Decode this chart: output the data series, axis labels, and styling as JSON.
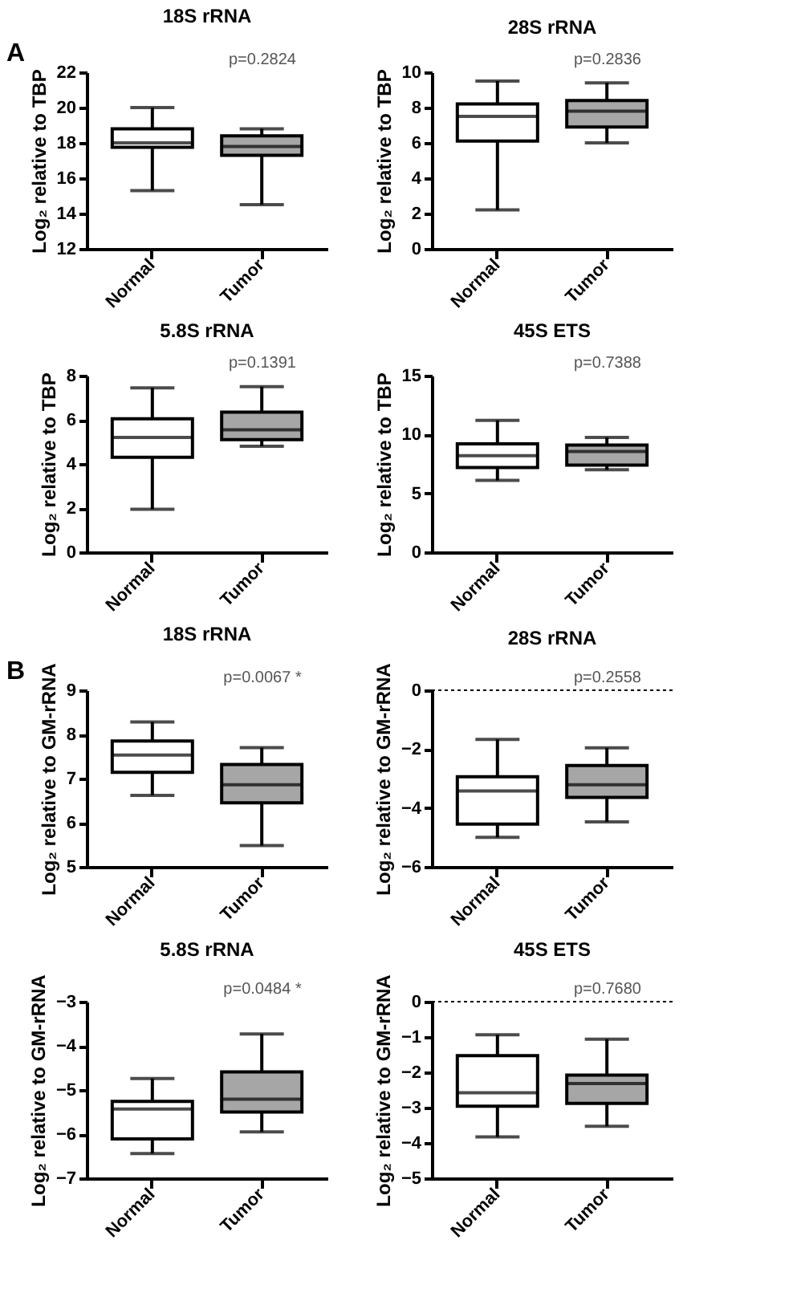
{
  "chart_data": [
    {
      "type": "box",
      "title": "18S rRNA",
      "ylabel": "Log₂ relative to TBP",
      "categories": [
        "Normal",
        "Tumor"
      ],
      "colors": [
        "#ffffff",
        "#a6a6a6"
      ],
      "ylim": [
        12,
        22
      ],
      "yticks": [
        12,
        14,
        16,
        18,
        20,
        22
      ],
      "annotations": [
        "A",
        "p=0.2824"
      ],
      "boxes": [
        {
          "low": 15.3,
          "q1": 17.75,
          "median": 18.0,
          "q3": 18.8,
          "high": 20.0
        },
        {
          "low": 14.5,
          "q1": 17.3,
          "median": 17.8,
          "q3": 18.4,
          "high": 18.8
        }
      ]
    },
    {
      "type": "box",
      "title": "28S rRNA",
      "ylabel": "Log₂ relative to TBP",
      "categories": [
        "Normal",
        "Tumor"
      ],
      "colors": [
        "#ffffff",
        "#a6a6a6"
      ],
      "ylim": [
        0,
        10
      ],
      "yticks": [
        0,
        2,
        4,
        6,
        8,
        10
      ],
      "annotations": [
        "p=0.2836"
      ],
      "boxes": [
        {
          "low": 2.2,
          "q1": 6.1,
          "median": 7.5,
          "q3": 8.2,
          "high": 9.5
        },
        {
          "low": 6.0,
          "q1": 6.9,
          "median": 7.8,
          "q3": 8.4,
          "high": 9.4
        }
      ]
    },
    {
      "type": "box",
      "title": "5.8S rRNA",
      "ylabel": "Log₂ relative to TBP",
      "categories": [
        "Normal",
        "Tumor"
      ],
      "colors": [
        "#ffffff",
        "#a6a6a6"
      ],
      "ylim": [
        0,
        8
      ],
      "yticks": [
        0,
        2,
        4,
        6,
        8
      ],
      "annotations": [
        "p=0.1391"
      ],
      "boxes": [
        {
          "low": 1.95,
          "q1": 4.3,
          "median": 5.2,
          "q3": 6.05,
          "high": 7.45
        },
        {
          "low": 4.8,
          "q1": 5.1,
          "median": 5.55,
          "q3": 6.35,
          "high": 7.5
        }
      ]
    },
    {
      "type": "box",
      "title": "45S ETS",
      "ylabel": "Log₂ relative to TBP",
      "categories": [
        "Normal",
        "Tumor"
      ],
      "colors": [
        "#ffffff",
        "#a6a6a6"
      ],
      "ylim": [
        0,
        15
      ],
      "yticks": [
        0,
        5,
        10,
        15
      ],
      "annotations": [
        "p=0.7388"
      ],
      "boxes": [
        {
          "low": 6.1,
          "q1": 7.2,
          "median": 8.2,
          "q3": 9.2,
          "high": 11.2
        },
        {
          "low": 7.0,
          "q1": 7.4,
          "median": 8.55,
          "q3": 9.1,
          "high": 9.75
        }
      ]
    },
    {
      "type": "box",
      "title": "18S rRNA",
      "ylabel": "Log₂ relative to GM-rRNA",
      "categories": [
        "Normal",
        "Tumor"
      ],
      "colors": [
        "#ffffff",
        "#a6a6a6"
      ],
      "ylim": [
        5,
        9
      ],
      "yticks": [
        5,
        6,
        7,
        8,
        9
      ],
      "annotations": [
        "B",
        "p=0.0067 *"
      ],
      "boxes": [
        {
          "low": 6.62,
          "q1": 7.14,
          "median": 7.53,
          "q3": 7.85,
          "high": 8.28
        },
        {
          "low": 5.48,
          "q1": 6.45,
          "median": 6.86,
          "q3": 7.32,
          "high": 7.7
        }
      ]
    },
    {
      "type": "box",
      "title": "28S rRNA",
      "ylabel": "Log₂ relative to GM-rRNA",
      "categories": [
        "Normal",
        "Tumor"
      ],
      "colors": [
        "#ffffff",
        "#a6a6a6"
      ],
      "ylim": [
        -6,
        0
      ],
      "yticks": [
        -6,
        -4,
        -2,
        0
      ],
      "annotations": [
        "p=0.2558"
      ],
      "ref_lines": [
        {
          "axis": "y",
          "value": 0,
          "line_style": "dotted"
        }
      ],
      "boxes": [
        {
          "low": -5.0,
          "q1": -4.55,
          "median": -3.42,
          "q3": -2.94,
          "high": -1.67
        },
        {
          "low": -4.47,
          "q1": -3.64,
          "median": -3.21,
          "q3": -2.56,
          "high": -1.96
        }
      ]
    },
    {
      "type": "box",
      "title": "5.8S rRNA",
      "ylabel": "Log₂ relative to GM-rRNA",
      "categories": [
        "Normal",
        "Tumor"
      ],
      "colors": [
        "#ffffff",
        "#a6a6a6"
      ],
      "ylim": [
        -7,
        -3
      ],
      "yticks": [
        -7,
        -6,
        -5,
        -4,
        -3
      ],
      "annotations": [
        "p=0.0484 *"
      ],
      "boxes": [
        {
          "low": -6.44,
          "q1": -6.11,
          "median": -5.43,
          "q3": -5.26,
          "high": -4.74
        },
        {
          "low": -5.95,
          "q1": -5.5,
          "median": -5.21,
          "q3": -4.59,
          "high": -3.73
        }
      ]
    },
    {
      "type": "box",
      "title": "45S ETS",
      "ylabel": "Log₂ relative to GM-rRNA",
      "categories": [
        "Normal",
        "Tumor"
      ],
      "colors": [
        "#ffffff",
        "#a6a6a6"
      ],
      "ylim": [
        -5,
        0
      ],
      "yticks": [
        -5,
        -4,
        -3,
        -2,
        -1,
        0
      ],
      "annotations": [
        "p=0.7680"
      ],
      "ref_lines": [
        {
          "axis": "y",
          "value": 0,
          "line_style": "dotted"
        }
      ],
      "boxes": [
        {
          "low": -3.83,
          "q1": -2.96,
          "median": -2.58,
          "q3": -1.53,
          "high": -0.94
        },
        {
          "low": -3.53,
          "q1": -2.88,
          "median": -2.32,
          "q3": -2.08,
          "high": -1.06
        }
      ]
    }
  ]
}
